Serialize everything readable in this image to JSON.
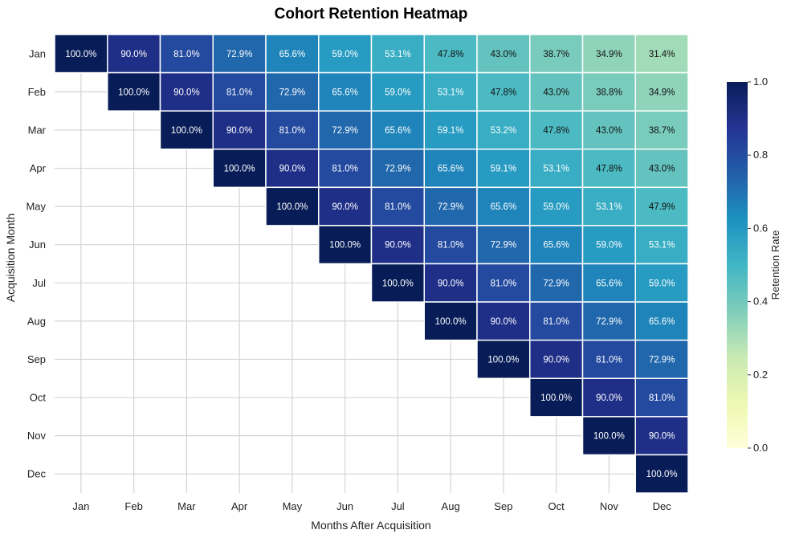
{
  "chart_data": {
    "type": "heatmap",
    "title": "Cohort Retention Heatmap",
    "xlabel": "Months After Acquisition",
    "ylabel": "Acquisition Month",
    "x_categories": [
      "Jan",
      "Feb",
      "Mar",
      "Apr",
      "May",
      "Jun",
      "Jul",
      "Aug",
      "Sep",
      "Oct",
      "Nov",
      "Dec"
    ],
    "y_categories": [
      "Jan",
      "Feb",
      "Mar",
      "Apr",
      "May",
      "Jun",
      "Jul",
      "Aug",
      "Sep",
      "Oct",
      "Nov",
      "Dec"
    ],
    "values": [
      [
        1.0,
        0.9,
        0.81,
        0.729,
        0.656,
        0.59,
        0.531,
        0.478,
        0.43,
        0.387,
        0.349,
        0.314
      ],
      [
        null,
        1.0,
        0.9,
        0.81,
        0.729,
        0.656,
        0.59,
        0.531,
        0.478,
        0.43,
        0.388,
        0.349
      ],
      [
        null,
        null,
        1.0,
        0.9,
        0.81,
        0.729,
        0.656,
        0.591,
        0.532,
        0.478,
        0.43,
        0.387
      ],
      [
        null,
        null,
        null,
        1.0,
        0.9,
        0.81,
        0.729,
        0.656,
        0.591,
        0.531,
        0.478,
        0.43
      ],
      [
        null,
        null,
        null,
        null,
        1.0,
        0.9,
        0.81,
        0.729,
        0.656,
        0.59,
        0.531,
        0.479
      ],
      [
        null,
        null,
        null,
        null,
        null,
        1.0,
        0.9,
        0.81,
        0.729,
        0.656,
        0.59,
        0.531
      ],
      [
        null,
        null,
        null,
        null,
        null,
        null,
        1.0,
        0.9,
        0.81,
        0.729,
        0.656,
        0.59
      ],
      [
        null,
        null,
        null,
        null,
        null,
        null,
        null,
        1.0,
        0.9,
        0.81,
        0.729,
        0.656
      ],
      [
        null,
        null,
        null,
        null,
        null,
        null,
        null,
        null,
        1.0,
        0.9,
        0.81,
        0.729
      ],
      [
        null,
        null,
        null,
        null,
        null,
        null,
        null,
        null,
        null,
        1.0,
        0.9,
        0.81
      ],
      [
        null,
        null,
        null,
        null,
        null,
        null,
        null,
        null,
        null,
        null,
        1.0,
        0.9
      ],
      [
        null,
        null,
        null,
        null,
        null,
        null,
        null,
        null,
        null,
        null,
        null,
        1.0
      ]
    ],
    "value_format": "percent_1dp",
    "colormap": "YlGnBu",
    "colorbar": {
      "label": "Retention Rate",
      "range": [
        0.0,
        1.0
      ],
      "ticks": [
        0.0,
        0.2,
        0.4,
        0.6,
        0.8,
        1.0
      ],
      "tick_labels": [
        "0.0",
        "0.2",
        "0.4",
        "0.6",
        "0.8",
        "1.0"
      ]
    },
    "grid": true,
    "legend_position": "right"
  }
}
